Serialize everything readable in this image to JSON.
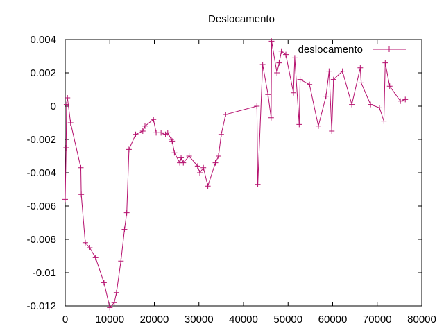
{
  "chart_data": {
    "type": "line",
    "title": "Deslocamento",
    "xlabel": "",
    "ylabel": "",
    "xlim": [
      0,
      80000
    ],
    "ylim": [
      -0.012,
      0.004
    ],
    "x_ticks": [
      "0",
      "10000",
      "20000",
      "30000",
      "40000",
      "50000",
      "60000",
      "70000",
      "80000"
    ],
    "y_ticks": [
      "0.004",
      "0.002",
      "0",
      "-0.002",
      "-0.004",
      "-0.006",
      "-0.008",
      "-0.01",
      "-0.012"
    ],
    "grid": false,
    "legend_position": "top-right",
    "series": [
      {
        "name": "deslocamento",
        "color": "#b5106e",
        "marker": "plus",
        "points": [
          [
            0,
            -0.0056
          ],
          [
            200,
            -0.0025
          ],
          [
            300,
            0.0001
          ],
          [
            500,
            0.0005
          ],
          [
            1200,
            -0.001
          ],
          [
            3500,
            -0.0037
          ],
          [
            3600,
            -0.0053
          ],
          [
            4500,
            -0.0082
          ],
          [
            5500,
            -0.0085
          ],
          [
            6800,
            -0.0091
          ],
          [
            8700,
            -0.0106
          ],
          [
            10000,
            -0.0121
          ],
          [
            11000,
            -0.0118
          ],
          [
            11500,
            -0.0112
          ],
          [
            12500,
            -0.0093
          ],
          [
            13300,
            -0.0074
          ],
          [
            13800,
            -0.0064
          ],
          [
            14300,
            -0.0026
          ],
          [
            15800,
            -0.0017
          ],
          [
            17400,
            -0.0015
          ],
          [
            17900,
            -0.0012
          ],
          [
            19800,
            -0.0008
          ],
          [
            20400,
            -0.0016
          ],
          [
            21500,
            -0.0016
          ],
          [
            22500,
            -0.0017
          ],
          [
            23000,
            -0.0016
          ],
          [
            23800,
            -0.002
          ],
          [
            24000,
            -0.0021
          ],
          [
            24500,
            -0.0028
          ],
          [
            25700,
            -0.0034
          ],
          [
            26000,
            -0.0031
          ],
          [
            26500,
            -0.0034
          ],
          [
            27800,
            -0.003
          ],
          [
            29700,
            -0.0036
          ],
          [
            30200,
            -0.004
          ],
          [
            31000,
            -0.0037
          ],
          [
            32000,
            -0.0048
          ],
          [
            33700,
            -0.0034
          ],
          [
            34400,
            -0.003
          ],
          [
            35000,
            -0.0017
          ],
          [
            36000,
            -0.0005
          ],
          [
            43000,
            0.0
          ],
          [
            43200,
            -0.0047
          ],
          [
            44300,
            0.0025
          ],
          [
            45500,
            0.0007
          ],
          [
            46200,
            -0.0007
          ],
          [
            46300,
            0.0039
          ],
          [
            47500,
            0.002
          ],
          [
            48000,
            0.0026
          ],
          [
            48500,
            0.0033
          ],
          [
            49500,
            0.0031
          ],
          [
            51200,
            0.0008
          ],
          [
            51500,
            0.0029
          ],
          [
            52500,
            -0.0011
          ],
          [
            52700,
            0.0016
          ],
          [
            54800,
            0.0013
          ],
          [
            56800,
            -0.0012
          ],
          [
            58500,
            0.0006
          ],
          [
            59200,
            0.0021
          ],
          [
            59800,
            -0.0015
          ],
          [
            60200,
            0.0016
          ],
          [
            62200,
            0.0021
          ],
          [
            64300,
            0.0001
          ],
          [
            66200,
            0.0023
          ],
          [
            66400,
            0.0014
          ],
          [
            68500,
            0.0001
          ],
          [
            70500,
            -0.0001
          ],
          [
            71500,
            -0.0009
          ],
          [
            71800,
            0.0026
          ],
          [
            72800,
            0.0012
          ],
          [
            75200,
            0.0003
          ],
          [
            76300,
            0.0004
          ]
        ]
      }
    ]
  }
}
